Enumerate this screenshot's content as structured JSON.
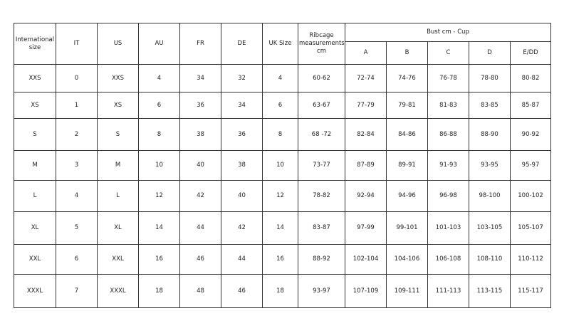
{
  "headers": {
    "international": "International size",
    "it": "IT",
    "us": "US",
    "au": "AU",
    "fr": "FR",
    "de": "DE",
    "uk": "UK Size",
    "ribcage": "Ribcage measurements cm",
    "bust_group": "Bust cm - Cup",
    "cups": [
      "A",
      "B",
      "C",
      "D",
      "E/DD"
    ]
  },
  "rows": [
    [
      "XXS",
      "0",
      "XXS",
      "4",
      "34",
      "32",
      "4",
      "60-62",
      "72-74",
      "74-76",
      "76-78",
      "78-80",
      "80-82"
    ],
    [
      "XS",
      "1",
      "XS",
      "6",
      "36",
      "34",
      "6",
      "63-67",
      "77-79",
      "79-81",
      "81-83",
      "83-85",
      "85-87"
    ],
    [
      "S",
      "2",
      "S",
      "8",
      "38",
      "36",
      "8",
      "68 -72",
      "82-84",
      "84-86",
      "86-88",
      "88-90",
      "90-92"
    ],
    [
      "M",
      "3",
      "M",
      "10",
      "40",
      "38",
      "10",
      "73-77",
      "87-89",
      "89-91",
      "91-93",
      "93-95",
      "95-97"
    ],
    [
      "L",
      "4",
      "L",
      "12",
      "42",
      "40",
      "12",
      "78-82",
      "92-94",
      "94-96",
      "96-98",
      "98-100",
      "100-102"
    ],
    [
      "XL",
      "5",
      "XL",
      "14",
      "44",
      "42",
      "14",
      "83-87",
      "97-99",
      "99-101",
      "101-103",
      "103-105",
      "105-107"
    ],
    [
      "XXL",
      "6",
      "XXL",
      "16",
      "46",
      "44",
      "16",
      "88-92",
      "102-104",
      "104-106",
      "106-108",
      "108-110",
      "110-112"
    ],
    [
      "XXXL",
      "7",
      "XXXL",
      "18",
      "48",
      "46",
      "18",
      "93-97",
      "107-109",
      "109-111",
      "111-113",
      "113-115",
      "115-117"
    ]
  ]
}
